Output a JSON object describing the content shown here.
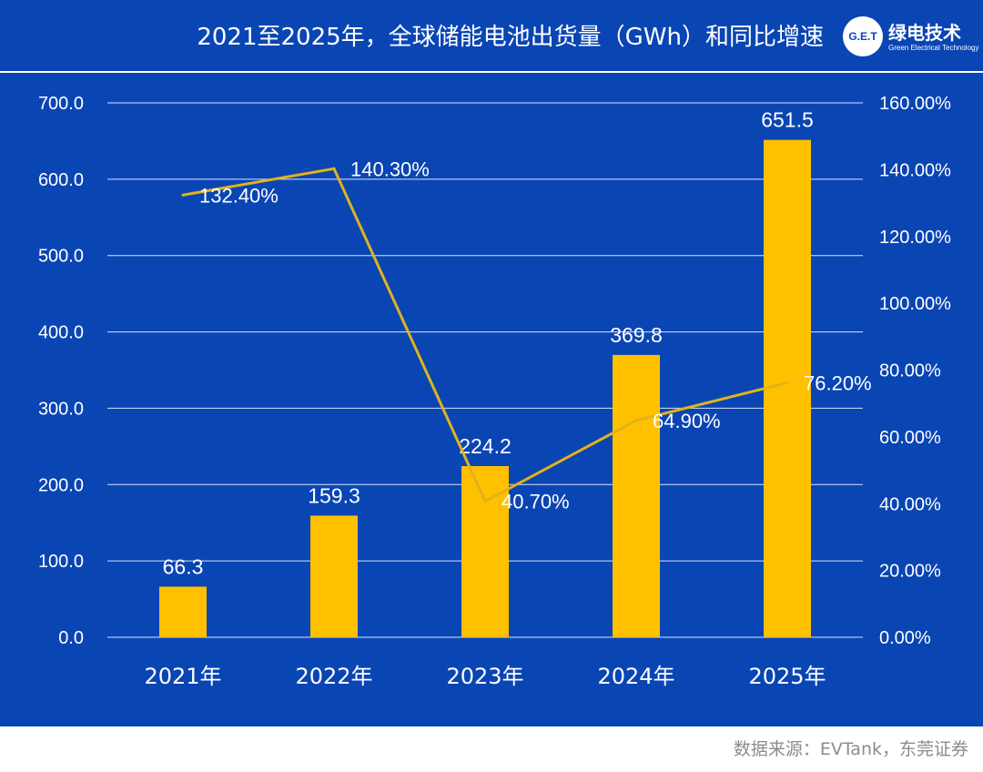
{
  "header": {
    "title": "2021至2025年，全球储能电池出货量（GWh）和同比增速",
    "logo_mark": "G.E.T",
    "logo_name": "绿电技术",
    "logo_subtitle": "Green Electrical Technology"
  },
  "footer": {
    "source": "数据来源：EVTank，东莞证券"
  },
  "colors": {
    "background": "#0a45b4",
    "bar": "#ffc000",
    "line": "#e0b31c",
    "text": "#ffffff",
    "grid": "#ffffff"
  },
  "chart_data": {
    "type": "bar",
    "title": "2021至2025年，全球储能电池出货量（GWh）和同比增速",
    "categories": [
      "2021年",
      "2022年",
      "2023年",
      "2024年",
      "2025年"
    ],
    "series": [
      {
        "name": "出货量（GWh）",
        "type": "bar",
        "axis": "left",
        "values": [
          66.3,
          159.3,
          224.2,
          369.8,
          651.5
        ],
        "labels": [
          "66.3",
          "159.3",
          "224.2",
          "369.8",
          "651.5"
        ]
      },
      {
        "name": "同比增速",
        "type": "line",
        "axis": "right",
        "values": [
          132.4,
          140.3,
          40.7,
          64.9,
          76.2
        ],
        "labels": [
          "132.40%",
          "140.30%",
          "40.70%",
          "64.90%",
          "76.20%"
        ]
      }
    ],
    "y_left": {
      "min": 0,
      "max": 700,
      "ticks": [
        "0.0",
        "100.0",
        "200.0",
        "300.0",
        "400.0",
        "500.0",
        "600.0",
        "700.0"
      ]
    },
    "y_right": {
      "min": 0,
      "max": 160,
      "ticks": [
        "0.00%",
        "20.00%",
        "40.00%",
        "60.00%",
        "80.00%",
        "100.00%",
        "120.00%",
        "140.00%",
        "160.00%"
      ]
    },
    "grid": true,
    "legend": "none"
  }
}
